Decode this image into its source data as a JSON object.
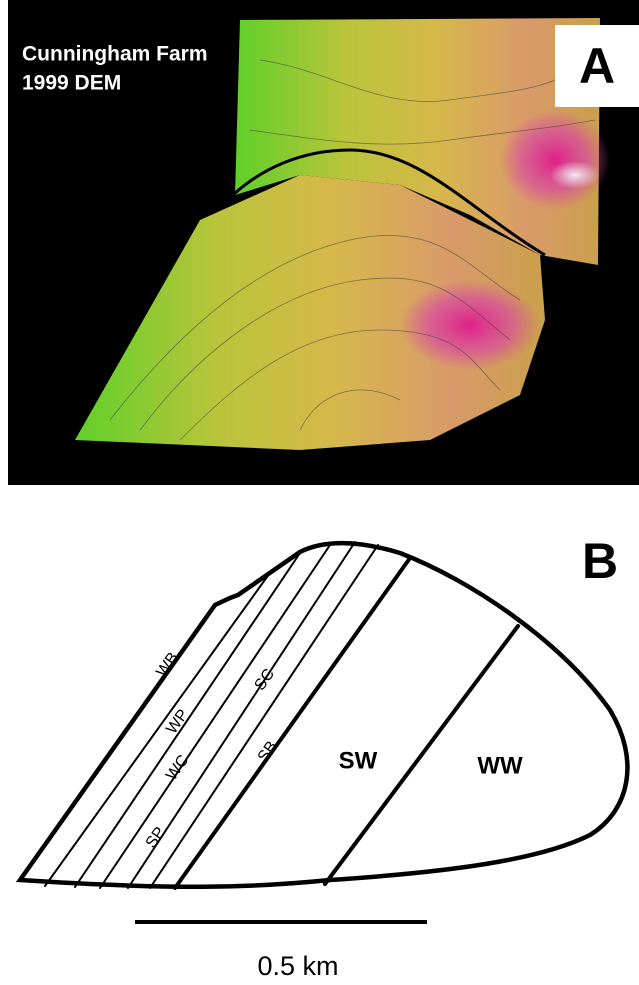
{
  "panel_a": {
    "title_lines": [
      "Cunningham Farm",
      "1999 DEM"
    ],
    "label": "A"
  },
  "panel_b": {
    "label": "B",
    "plots": [
      "WB",
      "WP",
      "WC",
      "SP",
      "SC",
      "SB",
      "SW",
      "WW"
    ],
    "scale_bar": "0.5 km"
  }
}
